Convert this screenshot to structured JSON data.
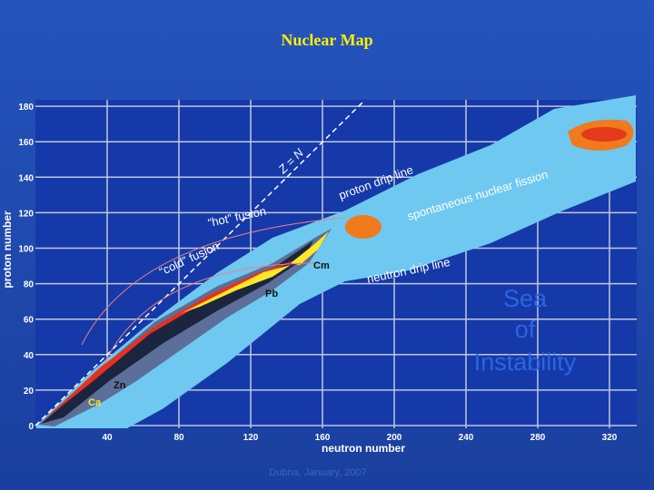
{
  "title": "Nuclear Map",
  "x_axis": {
    "label": "neutron number",
    "ticks": [
      40,
      80,
      120,
      160,
      200,
      240,
      280,
      320
    ]
  },
  "y_axis": {
    "label": "proton number",
    "ticks": [
      0,
      20,
      40,
      60,
      80,
      100,
      120,
      140,
      160,
      180
    ]
  },
  "annotations": {
    "z_equals_n": "Z = N",
    "proton_drip_line": "proton drip line",
    "fission": "spontaneous nuclear fission",
    "neutron_drip_line": "neutron drip line",
    "hot_fusion": "“hot” fusion",
    "cold_fusion": "“cold” fusion",
    "cm": "Cm",
    "pb": "Pb",
    "zn": "Zn",
    "ca": "Ca",
    "sea": [
      "Sea",
      "of",
      "Instability"
    ]
  },
  "footer": "Dubna, January, 2007"
}
